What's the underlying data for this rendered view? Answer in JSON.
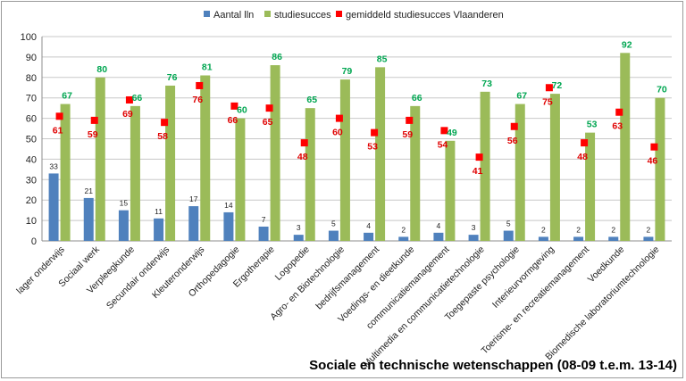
{
  "chart_data": {
    "type": "bar",
    "title": "Sociale en technische wetenschappen (08-09 t.e.m. 13-14)",
    "ylim": [
      0,
      100
    ],
    "yticks": [
      0,
      10,
      20,
      30,
      40,
      50,
      60,
      70,
      80,
      90,
      100
    ],
    "grid": true,
    "legend_position": "top",
    "categories": [
      "lager onderwijs",
      "Sociaal werk",
      "Verpleegkunde",
      "Secundair onderwijs",
      "Kleuteronderwijs",
      "Orthopedagogie",
      "Ergotherapie",
      "Logopedie",
      "Agro- en Biotechnologie",
      "bedrijfsmanagement",
      "Voedings- en dieetkunde",
      "communicatiemanagement",
      "Multimedia en communicatietechnologie",
      "Toegepaste psychologie",
      "Interieurvormgeving",
      "Toerisme- en recreatiemanagement",
      "Voedkunde",
      "Biomedische laboratoriumtechnologie"
    ],
    "series": [
      {
        "name": "Aantal lln",
        "type": "bar",
        "color": "#4f81bd",
        "values": [
          33,
          21,
          15,
          11,
          17,
          14,
          7,
          3,
          5,
          4,
          2,
          4,
          3,
          5,
          2,
          2,
          2,
          2
        ]
      },
      {
        "name": "studiesucces",
        "type": "bar",
        "color": "#9bbb59",
        "label_color": "#00a651",
        "values": [
          67,
          80,
          66,
          76,
          81,
          60,
          86,
          65,
          79,
          85,
          66,
          49,
          73,
          67,
          72,
          53,
          92,
          70
        ]
      },
      {
        "name": "gemiddeld studiesucces Vlaanderen",
        "type": "marker",
        "color": "#ff0000",
        "label_color": "#e00000",
        "values": [
          61,
          59,
          69,
          58,
          76,
          66,
          65,
          48,
          60,
          53,
          59,
          54,
          41,
          56,
          75,
          48,
          63,
          46
        ]
      }
    ]
  }
}
